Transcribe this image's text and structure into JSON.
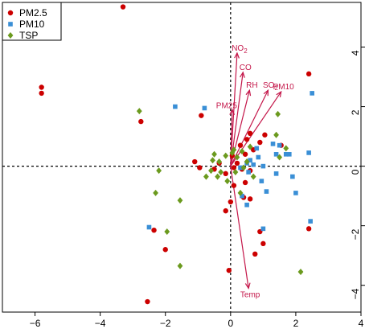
{
  "chart_data": {
    "type": "scatter",
    "title": "",
    "xlabel": "",
    "ylabel": "",
    "xlim": [
      -7,
      4
    ],
    "ylim": [
      -4.9,
      5.5
    ],
    "xticks": [
      -6,
      -4,
      -2,
      0,
      2,
      4
    ],
    "yticks": [
      -4,
      -2,
      0,
      2,
      4
    ],
    "grid": false,
    "reference_lines": {
      "x": 0,
      "y": 0,
      "style": "dashed"
    },
    "legend_position": "top-left",
    "series": [
      {
        "name": "PM2.5",
        "marker": "circle",
        "color": "#cc0000",
        "points": [
          [
            -3.3,
            5.35
          ],
          [
            -5.8,
            2.65
          ],
          [
            -5.8,
            2.45
          ],
          [
            -2.75,
            1.5
          ],
          [
            -0.9,
            1.7
          ],
          [
            0.3,
            0.7
          ],
          [
            0.5,
            0.9
          ],
          [
            0.6,
            1.1
          ],
          [
            0.45,
            0.4
          ],
          [
            0.2,
            0.1
          ],
          [
            0.05,
            0.35
          ],
          [
            0.7,
            0.55
          ],
          [
            0.9,
            0.8
          ],
          [
            1.05,
            1.05
          ],
          [
            0.1,
            -0.05
          ],
          [
            -0.15,
            -0.25
          ],
          [
            -0.35,
            0.1
          ],
          [
            -0.5,
            -0.1
          ],
          [
            0.35,
            -0.1
          ],
          [
            0.6,
            -0.15
          ],
          [
            0.1,
            -0.65
          ],
          [
            0.45,
            -0.55
          ],
          [
            0.4,
            -1.05
          ],
          [
            0.6,
            -1.1
          ],
          [
            0.0,
            -1.2
          ],
          [
            -0.15,
            -1.5
          ],
          [
            -1.1,
            0.15
          ],
          [
            -0.95,
            -0.05
          ],
          [
            -2.35,
            -2.15
          ],
          [
            -2.0,
            -2.8
          ],
          [
            0.9,
            -2.2
          ],
          [
            1.0,
            -2.6
          ],
          [
            0.75,
            -2.95
          ],
          [
            -0.05,
            -3.5
          ],
          [
            -2.55,
            -4.55
          ],
          [
            2.4,
            3.1
          ],
          [
            2.4,
            -2.1
          ],
          [
            1.55,
            0.7
          ]
        ]
      },
      {
        "name": "PM10",
        "marker": "square",
        "color": "#3a8fd6",
        "points": [
          [
            -1.7,
            2.0
          ],
          [
            -0.8,
            1.95
          ],
          [
            2.5,
            2.45
          ],
          [
            0.8,
            0.6
          ],
          [
            1.3,
            0.75
          ],
          [
            1.5,
            0.7
          ],
          [
            1.4,
            0.4
          ],
          [
            1.7,
            0.4
          ],
          [
            1.8,
            0.4
          ],
          [
            2.4,
            0.45
          ],
          [
            0.6,
            0.2
          ],
          [
            0.85,
            0.3
          ],
          [
            0.5,
            0.1
          ],
          [
            0.7,
            0.05
          ],
          [
            1.0,
            0.0
          ],
          [
            0.3,
            -0.05
          ],
          [
            0.55,
            -0.2
          ],
          [
            1.4,
            -0.25
          ],
          [
            1.9,
            -0.35
          ],
          [
            0.95,
            -0.5
          ],
          [
            1.1,
            -0.85
          ],
          [
            2.0,
            -0.9
          ],
          [
            0.35,
            -1.0
          ],
          [
            -2.5,
            -2.05
          ],
          [
            1.0,
            -2.1
          ],
          [
            2.45,
            -1.85
          ],
          [
            0.5,
            -1.3
          ]
        ]
      },
      {
        "name": "TSP",
        "marker": "diamond",
        "color": "#6b9a1e",
        "points": [
          [
            -2.8,
            1.85
          ],
          [
            1.45,
            1.75
          ],
          [
            1.4,
            1.05
          ],
          [
            0.1,
            0.55
          ],
          [
            -0.15,
            0.35
          ],
          [
            0.05,
            0.45
          ],
          [
            -0.5,
            0.4
          ],
          [
            0.2,
            0.3
          ],
          [
            0.35,
            0.5
          ],
          [
            0.6,
            0.65
          ],
          [
            -0.35,
            0.15
          ],
          [
            -0.55,
            0.2
          ],
          [
            0.5,
            0.15
          ],
          [
            0.4,
            -0.05
          ],
          [
            -0.3,
            -0.2
          ],
          [
            -0.6,
            -0.15
          ],
          [
            -0.75,
            -0.35
          ],
          [
            -2.2,
            -0.15
          ],
          [
            -0.4,
            -0.35
          ],
          [
            -0.1,
            -0.5
          ],
          [
            0.15,
            -0.2
          ],
          [
            0.7,
            -0.35
          ],
          [
            1.5,
            0.3
          ],
          [
            1.7,
            0.6
          ],
          [
            -2.3,
            -0.9
          ],
          [
            -1.55,
            -1.15
          ],
          [
            -1.95,
            -2.2
          ],
          [
            -1.55,
            -3.35
          ],
          [
            2.15,
            -3.55
          ],
          [
            0.3,
            -0.9
          ]
        ]
      }
    ],
    "arrows": [
      {
        "label": "NO2",
        "x": 0.2,
        "y": 3.8
      },
      {
        "label": "CO",
        "x": 0.38,
        "y": 3.15
      },
      {
        "label": "RH",
        "x": 0.58,
        "y": 2.55
      },
      {
        "label": "SO2",
        "x": 1.15,
        "y": 2.55
      },
      {
        "label": "PM10",
        "x": 1.55,
        "y": 2.5
      },
      {
        "label": "PM25",
        "x": 0.05,
        "y": 1.9
      },
      {
        "label": "Temp",
        "x": 0.55,
        "y": -4.1
      }
    ],
    "arrow_color": "#c4174a"
  }
}
